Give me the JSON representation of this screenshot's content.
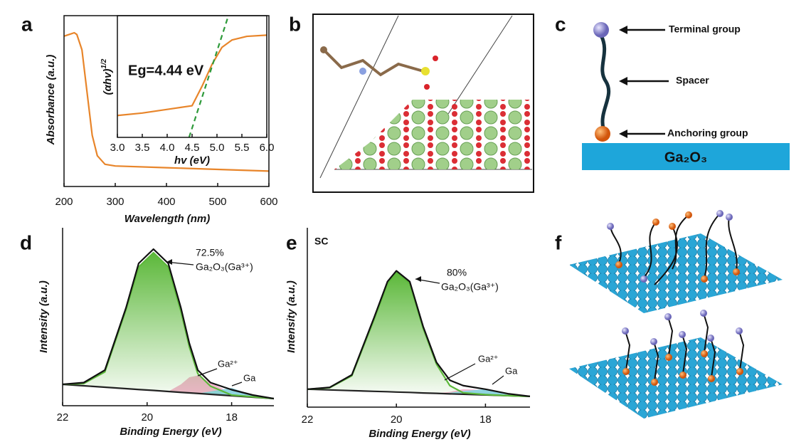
{
  "panel_labels": [
    "a",
    "b",
    "c",
    "d",
    "e",
    "f"
  ],
  "chart_data": [
    {
      "type": "line",
      "xlabel": "Wavelength (nm)",
      "ylabel": "Absorbance (a.u.)",
      "x": [
        200,
        210,
        220,
        225,
        235,
        245,
        255,
        265,
        280,
        300,
        400,
        500,
        600
      ],
      "series": [
        {
          "color": "#e8852a",
          "line": true,
          "values": [
            0.88,
            0.89,
            0.9,
            0.89,
            0.8,
            0.55,
            0.3,
            0.18,
            0.13,
            0.12,
            0.11,
            0.1,
            0.09
          ]
        }
      ],
      "xlim": [
        200,
        600
      ],
      "ylim": [
        0,
        1
      ],
      "xticks": [
        200,
        300,
        400,
        500,
        600
      ]
    },
    {
      "type": "line",
      "xlabel": "hv (eV)",
      "ylabel": "(αhv)",
      "ylabel_sup": "1/2",
      "annotations": [
        "Eg=4.44 eV"
      ],
      "x": [
        3.0,
        3.5,
        4.0,
        4.5,
        4.7,
        4.9,
        5.1,
        5.3,
        5.6,
        6.0
      ],
      "series": [
        {
          "color": "#e8852a",
          "line": true,
          "values": [
            0.18,
            0.2,
            0.23,
            0.26,
            0.42,
            0.6,
            0.74,
            0.8,
            0.83,
            0.84
          ]
        },
        {
          "color": "#2e9a3a",
          "line": true,
          "dashed": true,
          "x": [
            4.44,
            5.23
          ],
          "values": [
            0,
            1
          ]
        }
      ],
      "xlim": [
        3.0,
        6.0
      ],
      "ylim": [
        0,
        1
      ],
      "xticks": [
        {
          "value": 3,
          "label": "3.0"
        },
        3.5,
        {
          "value": 4,
          "label": "4.0"
        },
        4.5,
        {
          "value": 5,
          "label": "5.0"
        },
        5.5,
        {
          "value": 6,
          "label": "6.0"
        }
      ]
    },
    {
      "type": "line",
      "xlabel": "Binding Energy (eV)",
      "ylabel": "Intensity (a.u.)",
      "annotations": [
        "72.5%",
        "Ga₂O₃(Ga³⁺)",
        "Ga²⁺",
        "Ga"
      ],
      "x": [
        22,
        21.5,
        21,
        20.5,
        20.2,
        19.85,
        19.5,
        19.2,
        19,
        18.8,
        18.5,
        18,
        17.5,
        17
      ],
      "series": [
        {
          "color": "#222222",
          "line": true,
          "values": [
            0.12,
            0.112,
            0.104,
            0.096,
            0.091,
            0.086,
            0.08,
            0.075,
            0.072,
            0.069,
            0.064,
            0.056,
            0.048,
            0.04
          ]
        },
        {
          "color": "#f4b6cf",
          "fill": true,
          "fill_to": 0,
          "values": [
            0.12,
            0.112,
            0.104,
            0.096,
            0.091,
            0.086,
            0.08,
            0.12,
            0.16,
            0.17,
            0.13,
            0.07,
            0.048,
            0.04
          ]
        },
        {
          "color": "#8fd3e0",
          "fill": true,
          "fill_to": 0,
          "values": [
            0.12,
            0.112,
            0.104,
            0.096,
            0.091,
            0.086,
            0.08,
            0.075,
            0.072,
            0.069,
            0.08,
            0.1,
            0.06,
            0.04
          ]
        },
        {
          "color": "#5cb83a",
          "fill": true,
          "gradient": true,
          "fill_to": 0,
          "line": true,
          "values": [
            0.12,
            0.125,
            0.19,
            0.54,
            0.78,
            0.86,
            0.78,
            0.53,
            0.33,
            0.18,
            0.11,
            0.06,
            0.05,
            0.04
          ]
        },
        {
          "color": "#111111",
          "line": true,
          "values": [
            0.12,
            0.13,
            0.2,
            0.55,
            0.8,
            0.88,
            0.8,
            0.55,
            0.35,
            0.2,
            0.13,
            0.09,
            0.06,
            0.04
          ]
        }
      ],
      "xlim": [
        22,
        17
      ],
      "ylim": [
        0,
        1
      ],
      "xticks": [
        22,
        20,
        18
      ]
    },
    {
      "type": "line",
      "xlabel": "Binding Energy (eV)",
      "ylabel": "Intensity (a.u.)",
      "label": "SC",
      "annotations": [
        "80%",
        "Ga₂O₃(Ga³⁺)",
        "Ga²⁺",
        "Ga"
      ],
      "x": [
        22,
        21.5,
        21,
        20.5,
        20.2,
        20,
        19.7,
        19.4,
        19.1,
        18.8,
        18.5,
        18,
        17.5,
        17
      ],
      "series": [
        {
          "color": "#222222",
          "line": true,
          "values": [
            0.1,
            0.096,
            0.092,
            0.088,
            0.086,
            0.084,
            0.082,
            0.079,
            0.077,
            0.074,
            0.072,
            0.068,
            0.064,
            0.06
          ]
        },
        {
          "color": "#f4b6cf",
          "fill": true,
          "fill_to": 0,
          "values": [
            0.1,
            0.096,
            0.092,
            0.088,
            0.086,
            0.084,
            0.082,
            0.079,
            0.077,
            0.085,
            0.1,
            0.095,
            0.07,
            0.06
          ]
        },
        {
          "color": "#8fd3e0",
          "fill": true,
          "fill_to": 0,
          "values": [
            0.1,
            0.096,
            0.092,
            0.088,
            0.086,
            0.084,
            0.082,
            0.079,
            0.077,
            0.08,
            0.09,
            0.1,
            0.07,
            0.06
          ]
        },
        {
          "color": "#5cb83a",
          "fill": true,
          "gradient": true,
          "fill_to": 0,
          "line": true,
          "values": [
            0.1,
            0.108,
            0.175,
            0.49,
            0.69,
            0.75,
            0.69,
            0.44,
            0.24,
            0.12,
            0.08,
            0.07,
            0.064,
            0.06
          ]
        },
        {
          "color": "#111111",
          "line": true,
          "values": [
            0.1,
            0.11,
            0.18,
            0.5,
            0.7,
            0.76,
            0.7,
            0.45,
            0.25,
            0.15,
            0.12,
            0.1,
            0.075,
            0.06
          ]
        }
      ],
      "xlim": [
        22,
        17
      ],
      "ylim": [
        0,
        1
      ],
      "xticks": [
        22,
        20,
        18
      ]
    }
  ],
  "diagram_c": {
    "labels": [
      "Terminal group",
      "Spacer",
      "Anchoring group"
    ],
    "substrate": "Ga₂O₃"
  }
}
